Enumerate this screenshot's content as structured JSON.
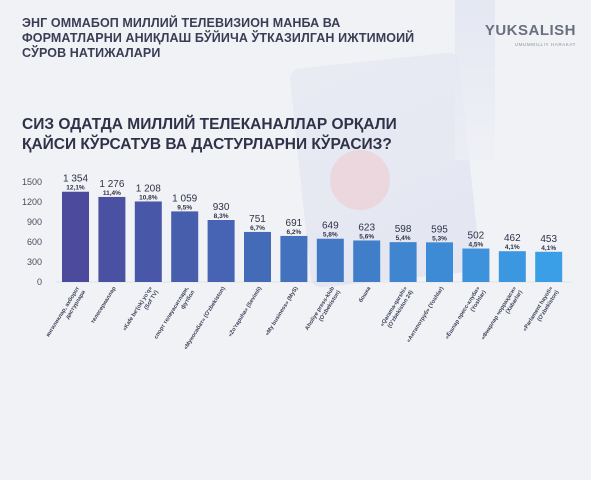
{
  "header": {
    "title": "ЭНГ ОММАБОП МИЛЛИЙ ТЕЛЕВИЗИОН МАНБА ВА ФОРМАТЛАРНИ АНИҚЛАШ БЎЙИЧА ЎТКАЗИЛГАН ИЖТИМОИЙ СЎРОВ НАТИЖАЛАРИ",
    "logo_text": "YUKSALISH",
    "logo_subtext": "UMUMMILLIY HARAKAT"
  },
  "colors": {
    "bar_start": "#4b4a9c",
    "bar_end": "#3a9fe6",
    "background": "#f1f2f5",
    "logo": "#6a6f80"
  },
  "chart_data": {
    "type": "bar",
    "title": "СИЗ ОДАТДА МИЛЛИЙ ТЕЛЕКАНАЛЛАР ОРҚАЛИ ҚАЙСИ КЎРСАТУВ ВА ДАСТУРЛАРНИ КЎРАСИЗ?",
    "xlabel": "",
    "ylabel": "",
    "ylim": [
      0,
      1500
    ],
    "yticks": [
      "0",
      "300",
      "600",
      "900",
      "1200",
      "1500"
    ],
    "grid": false,
    "categories": [
      [
        "янгиликлар, ахборот",
        "дастурлари"
      ],
      [
        "телесериаллар"
      ],
      [
        "«Kafe be'(ok) yo'q»",
        "(Sof TV)"
      ],
      [
        "спорт телеуаситлари,",
        "футбол"
      ],
      [
        "«Муносабат» (O'zbekiston)"
      ],
      [
        "«Zo'rapuha» (Sevimli)"
      ],
      [
        "«My business» (MyS)"
      ],
      [
        "Aholiye press-klub",
        "(O'zbekiston)"
      ],
      [
        "бошка"
      ],
      [
        "«Qarama-qarshi»",
        "(O'zbekiston 24)"
      ],
      [
        "«Антипотруб» (Yoshlar)"
      ],
      [
        "«Ёшлар пресс-клуби»",
        "(Yoshlar)"
      ],
      [
        "«Фикрлар чорраҳаси»",
        "(Xabarlar)"
      ],
      [
        "«Parlament hayoti»",
        "(O'zbekiston)"
      ]
    ],
    "values": [
      1354,
      1276,
      1208,
      1059,
      930,
      751,
      691,
      649,
      623,
      598,
      595,
      502,
      462,
      453
    ],
    "value_labels": [
      "1 354",
      "1 276",
      "1 208",
      "1 059",
      "930",
      "751",
      "691",
      "649",
      "623",
      "598",
      "595",
      "502",
      "462",
      "453"
    ],
    "percent_labels": [
      "12,1%",
      "11,4%",
      "10,8%",
      "9,5%",
      "8,3%",
      "6,7%",
      "6,2%",
      "5,8%",
      "5,6%",
      "5,4%",
      "5,3%",
      "4,5%",
      "4,1%",
      "4,1%"
    ]
  }
}
